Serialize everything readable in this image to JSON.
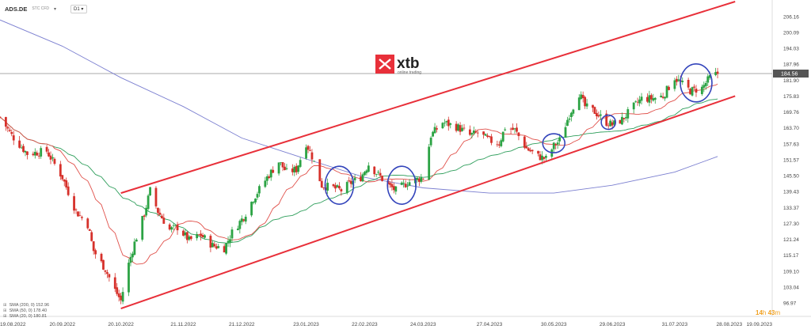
{
  "toolbar": {
    "symbol": "ADS.DE",
    "symbol_sub": "STC CFD",
    "timeframe": "D1"
  },
  "watermark": {
    "brand": "xtb",
    "tagline": "online trading"
  },
  "price_tag": "184.56",
  "timer": {
    "hours": "14",
    "h": "h",
    "minutes": "43",
    "m": "m"
  },
  "legend": [
    {
      "text": "SMA (200, 0) 152.96",
      "color": "#7b7fd0"
    },
    {
      "text": "SMA (50, 0) 178.40",
      "color": "#2e9e5b"
    },
    {
      "text": "SMA (20, 0) 180.81",
      "color": "#e0504a"
    }
  ],
  "colors": {
    "up": "#2ca344",
    "down": "#d6312b",
    "channel": "#e8303a",
    "circle": "#3344bb",
    "sma200": "#7b7fd0",
    "sma50": "#2e9e5b",
    "sma20": "#e0504a"
  },
  "chart_data": {
    "type": "candlestick",
    "symbol": "ADS.DE",
    "timeframe": "D1",
    "y_ticks": [
      96.97,
      103.04,
      109.1,
      115.17,
      121.24,
      127.3,
      133.37,
      139.43,
      145.5,
      151.57,
      157.63,
      163.7,
      169.76,
      175.83,
      181.9,
      187.96,
      194.03,
      200.09,
      206.16
    ],
    "ylim": [
      92,
      212
    ],
    "x_tick_labels": [
      "19.08.2022",
      "20.09.2022",
      "20.10.2022",
      "21.11.2022",
      "21.12.2022",
      "23.01.2023",
      "22.02.2023",
      "24.03.2023",
      "27.04.2023",
      "30.05.2023",
      "29.06.2023",
      "31.07.2023",
      "28.08.2023",
      "19.09.2023"
    ],
    "last_price": 184.56,
    "ohlc_anchors": [
      [
        "2022-08-19",
        168
      ],
      [
        "2022-08-25",
        161
      ],
      [
        "2022-09-02",
        154
      ],
      [
        "2022-09-12",
        155
      ],
      [
        "2022-09-20",
        145
      ],
      [
        "2022-09-27",
        132
      ],
      [
        "2022-10-03",
        127
      ],
      [
        "2022-10-06",
        117
      ],
      [
        "2022-10-12",
        110
      ],
      [
        "2022-10-17",
        102
      ],
      [
        "2022-10-20",
        98
      ],
      [
        "2022-10-24",
        112
      ],
      [
        "2022-10-27",
        120
      ],
      [
        "2022-11-01",
        131
      ],
      [
        "2022-11-04",
        140
      ],
      [
        "2022-11-08",
        132
      ],
      [
        "2022-11-14",
        125
      ],
      [
        "2022-11-18",
        126
      ],
      [
        "2022-11-24",
        121
      ],
      [
        "2022-11-30",
        123
      ],
      [
        "2022-12-06",
        119
      ],
      [
        "2022-12-12",
        118
      ],
      [
        "2022-12-16",
        124
      ],
      [
        "2022-12-22",
        130
      ],
      [
        "2022-12-27",
        137
      ],
      [
        "2023-01-03",
        145
      ],
      [
        "2023-01-09",
        151
      ],
      [
        "2023-01-13",
        147
      ],
      [
        "2023-01-18",
        148
      ],
      [
        "2023-01-23",
        158
      ],
      [
        "2023-01-26",
        153
      ],
      [
        "2023-01-31",
        142
      ],
      [
        "2023-02-06",
        141
      ],
      [
        "2023-02-10",
        140
      ],
      [
        "2023-02-15",
        143
      ],
      [
        "2023-02-20",
        145
      ],
      [
        "2023-02-24",
        150
      ],
      [
        "2023-03-01",
        146
      ],
      [
        "2023-03-06",
        142
      ],
      [
        "2023-03-10",
        140
      ],
      [
        "2023-03-16",
        143
      ],
      [
        "2023-03-20",
        144
      ],
      [
        "2023-03-24",
        145
      ],
      [
        "2023-03-28",
        161
      ],
      [
        "2023-04-03",
        166
      ],
      [
        "2023-04-11",
        164
      ],
      [
        "2023-04-17",
        161
      ],
      [
        "2023-04-21",
        162
      ],
      [
        "2023-04-27",
        159
      ],
      [
        "2023-05-02",
        158
      ],
      [
        "2023-05-05",
        164
      ],
      [
        "2023-05-10",
        163
      ],
      [
        "2023-05-16",
        156
      ],
      [
        "2023-05-22",
        153
      ],
      [
        "2023-05-26",
        152
      ],
      [
        "2023-05-30",
        157
      ],
      [
        "2023-06-02",
        159
      ],
      [
        "2023-06-07",
        169
      ],
      [
        "2023-06-12",
        177
      ],
      [
        "2023-06-15",
        172
      ],
      [
        "2023-06-20",
        170
      ],
      [
        "2023-06-26",
        166
      ],
      [
        "2023-06-29",
        165
      ],
      [
        "2023-07-04",
        167
      ],
      [
        "2023-07-10",
        172
      ],
      [
        "2023-07-14",
        175
      ],
      [
        "2023-07-19",
        175
      ],
      [
        "2023-07-25",
        176
      ],
      [
        "2023-07-31",
        183
      ],
      [
        "2023-08-03",
        181
      ],
      [
        "2023-08-08",
        178
      ],
      [
        "2023-08-14",
        179
      ],
      [
        "2023-08-18",
        183
      ],
      [
        "2023-08-22",
        184.56
      ]
    ],
    "indicators": [
      {
        "name": "SMA (200, 0)",
        "value": 152.96
      },
      {
        "name": "SMA (50, 0)",
        "value": 178.4
      },
      {
        "name": "SMA (20, 0)",
        "value": 180.81
      }
    ],
    "annotations": {
      "channel_upper": [
        [
          "2022-10-20",
          139
        ],
        [
          "2023-08-31",
          212
        ]
      ],
      "channel_lower": [
        [
          "2022-10-20",
          95
        ],
        [
          "2023-08-31",
          176
        ]
      ],
      "circles_center": [
        [
          "2023-02-09",
          142
        ],
        [
          "2023-03-13",
          142
        ],
        [
          "2023-05-30",
          158
        ],
        [
          "2023-06-27",
          166
        ],
        [
          "2023-08-11",
          181
        ]
      ]
    }
  }
}
